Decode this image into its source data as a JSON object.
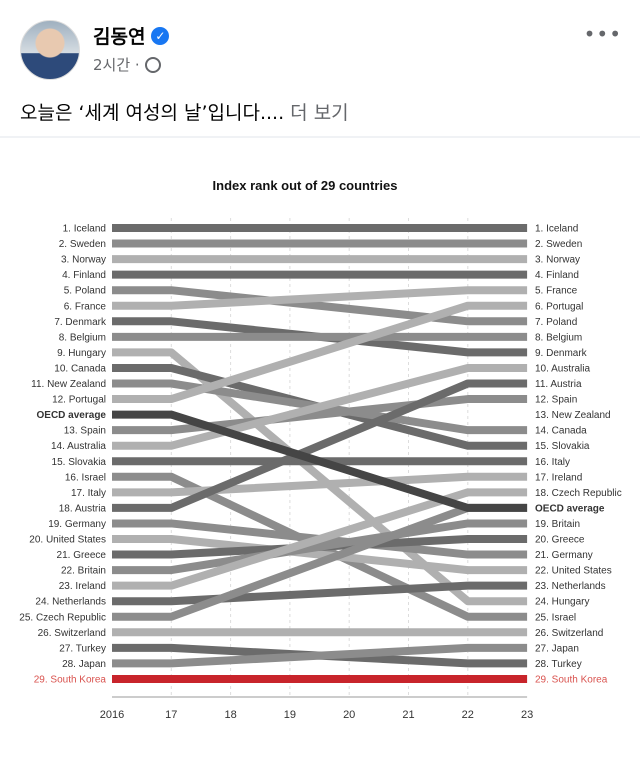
{
  "header": {
    "author": "김동연",
    "verified_icon": "verified-badge-icon",
    "time": "2시간 ·",
    "privacy_icon": "globe-icon",
    "more_icon": "more-dots-icon",
    "more_label": "•••"
  },
  "post": {
    "text": "오늘은 ‘세계 여성의 날’입니다....",
    "see_more": "더 보기"
  },
  "chart_data": {
    "type": "line",
    "title": "Index rank out of 29 countries",
    "x_ticks": [
      "2016",
      "17",
      "18",
      "19",
      "20",
      "21",
      "22",
      "23"
    ],
    "left_labels": [
      "1. Iceland",
      "2. Sweden",
      "3. Norway",
      "4. Finland",
      "5. Poland",
      "6. France",
      "7. Denmark",
      "8. Belgium",
      "9. Hungary",
      "10. Canada",
      "11. New Zealand",
      "12. Portugal",
      "OECD average",
      "13. Spain",
      "14. Australia",
      "15. Slovakia",
      "16. Israel",
      "17. Italy",
      "18. Austria",
      "19. Germany",
      "20. United States",
      "21. Greece",
      "22. Britain",
      "23. Ireland",
      "24. Netherlands",
      "25. Czech Republic",
      "26. Switzerland",
      "27. Turkey",
      "28. Japan",
      "29. South Korea"
    ],
    "right_labels": [
      "1. Iceland",
      "2. Sweden",
      "3. Norway",
      "4. Finland",
      "5. France",
      "6. Portugal",
      "7. Poland",
      "8. Belgium",
      "9. Denmark",
      "10. Australia",
      "11. Austria",
      "12. Spain",
      "13. New Zealand",
      "14. Canada",
      "15. Slovakia",
      "16. Italy",
      "17. Ireland",
      "18. Czech Republic",
      "OECD average",
      "19. Britain",
      "20. Greece",
      "21. Germany",
      "22. United States",
      "23. Netherlands",
      "24. Hungary",
      "25. Israel",
      "26. Switzerland",
      "27. Japan",
      "28. Turkey",
      "29. South Korea"
    ],
    "series": [
      {
        "name": "Iceland",
        "rank_2016": 1,
        "rank_2023": 1
      },
      {
        "name": "Sweden",
        "rank_2016": 2,
        "rank_2023": 2
      },
      {
        "name": "Norway",
        "rank_2016": 3,
        "rank_2023": 3
      },
      {
        "name": "Finland",
        "rank_2016": 4,
        "rank_2023": 4
      },
      {
        "name": "Poland",
        "rank_2016": 5,
        "rank_2023": 7
      },
      {
        "name": "France",
        "rank_2016": 6,
        "rank_2023": 5
      },
      {
        "name": "Denmark",
        "rank_2016": 7,
        "rank_2023": 9
      },
      {
        "name": "Belgium",
        "rank_2016": 8,
        "rank_2023": 8
      },
      {
        "name": "Hungary",
        "rank_2016": 9,
        "rank_2023": 24
      },
      {
        "name": "Canada",
        "rank_2016": 10,
        "rank_2023": 14
      },
      {
        "name": "New Zealand",
        "rank_2016": 11,
        "rank_2023": 13
      },
      {
        "name": "Portugal",
        "rank_2016": 12,
        "rank_2023": 6
      },
      {
        "name": "OECD average",
        "rank_2016": 12.5,
        "rank_2023": 18.5
      },
      {
        "name": "Spain",
        "rank_2016": 13,
        "rank_2023": 12
      },
      {
        "name": "Australia",
        "rank_2016": 14,
        "rank_2023": 10
      },
      {
        "name": "Slovakia",
        "rank_2016": 15,
        "rank_2023": 15
      },
      {
        "name": "Israel",
        "rank_2016": 16,
        "rank_2023": 25
      },
      {
        "name": "Italy",
        "rank_2016": 17,
        "rank_2023": 16
      },
      {
        "name": "Austria",
        "rank_2016": 18,
        "rank_2023": 11
      },
      {
        "name": "Germany",
        "rank_2016": 19,
        "rank_2023": 21
      },
      {
        "name": "United States",
        "rank_2016": 20,
        "rank_2023": 22
      },
      {
        "name": "Greece",
        "rank_2016": 21,
        "rank_2023": 20
      },
      {
        "name": "Britain",
        "rank_2016": 22,
        "rank_2023": 19
      },
      {
        "name": "Ireland",
        "rank_2016": 23,
        "rank_2023": 17
      },
      {
        "name": "Netherlands",
        "rank_2016": 24,
        "rank_2023": 23
      },
      {
        "name": "Czech Republic",
        "rank_2016": 25,
        "rank_2023": 18
      },
      {
        "name": "Switzerland",
        "rank_2016": 26,
        "rank_2023": 26
      },
      {
        "name": "Turkey",
        "rank_2016": 27,
        "rank_2023": 28
      },
      {
        "name": "Japan",
        "rank_2016": 28,
        "rank_2023": 27
      },
      {
        "name": "South Korea",
        "rank_2016": 29,
        "rank_2023": 29
      }
    ],
    "colors": {
      "highlight": "#c8242b",
      "oecd": "#454545",
      "dark": "#6b6b6b",
      "mid": "#8c8c8c",
      "light": "#b0b0b0"
    }
  }
}
